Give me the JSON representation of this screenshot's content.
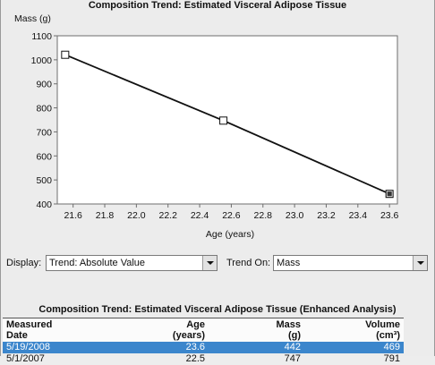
{
  "chart_data": {
    "type": "line",
    "title": "Composition Trend: Estimated Visceral Adipose Tissue",
    "ylabel": "Mass (g)",
    "xlabel": "Age (years)",
    "xlim": [
      21.5,
      23.65
    ],
    "ylim": [
      400,
      1100
    ],
    "x_ticks": [
      "21.6",
      "21.8",
      "22.0",
      "22.2",
      "22.4",
      "22.6",
      "22.8",
      "23.0",
      "23.2",
      "23.4",
      "23.6"
    ],
    "y_ticks": [
      "400",
      "500",
      "600",
      "700",
      "800",
      "900",
      "1000",
      "1100"
    ],
    "points": [
      {
        "x": 21.55,
        "y": 1021,
        "marker": "open-square"
      },
      {
        "x": 22.55,
        "y": 747,
        "marker": "open-square"
      },
      {
        "x": 23.6,
        "y": 442,
        "marker": "filled-square"
      }
    ],
    "grid": false,
    "colors": {
      "line": "#111111",
      "plot_bg": "#ffffff",
      "page_bg": "#ececec"
    }
  },
  "controls": {
    "display_label": "Display:",
    "display_value": "Trend: Absolute Value",
    "trend_on_label": "Trend On:",
    "trend_on_value": "Mass"
  },
  "table": {
    "title": "Composition Trend: Estimated Visceral Adipose Tissue (Enhanced Analysis)",
    "headers": {
      "date_line1": "Measured",
      "date_line2": "Date",
      "age_line1": "Age",
      "age_line2": "(years)",
      "mass_line1": "Mass",
      "mass_line2": "(g)",
      "volume_line1": "Volume",
      "volume_line2": "(cm³)"
    },
    "rows": [
      {
        "date": "5/19/2008",
        "age": "23.6",
        "mass": "442",
        "volume": "469",
        "selected": true
      },
      {
        "date": "5/1/2007",
        "age": "22.5",
        "mass": "747",
        "volume": "791",
        "selected": false
      }
    ],
    "colors": {
      "selected_row": "#3b86cc"
    }
  }
}
